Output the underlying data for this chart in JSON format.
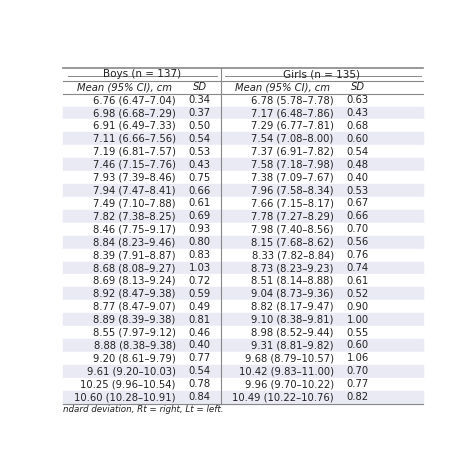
{
  "title_boys": "Boys (n = 137)",
  "title_girls": "Girls (n = 135)",
  "col_headers": [
    "Mean (95% CI), cm",
    "SD",
    "Mean (95% CI), cm",
    "SD"
  ],
  "boys_data": [
    [
      "6.76 (6.47–7.04)",
      "0.34"
    ],
    [
      "6.98 (6.68–7.29)",
      "0.37"
    ],
    [
      "6.91 (6.49–7.33)",
      "0.50"
    ],
    [
      "7.11 (6.66–7.56)",
      "0.54"
    ],
    [
      "7.19 (6.81–7.57)",
      "0.53"
    ],
    [
      "7.46 (7.15–7.76)",
      "0.43"
    ],
    [
      "7.93 (7.39–8.46)",
      "0.75"
    ],
    [
      "7.94 (7.47–8.41)",
      "0.66"
    ],
    [
      "7.49 (7.10–7.88)",
      "0.61"
    ],
    [
      "7.82 (7.38–8.25)",
      "0.69"
    ],
    [
      "8.46 (7.75–9.17)",
      "0.93"
    ],
    [
      "8.84 (8.23–9.46)",
      "0.80"
    ],
    [
      "8.39 (7.91–8.87)",
      "0.83"
    ],
    [
      "8.68 (8.08–9.27)",
      "1.03"
    ],
    [
      "8.69 (8.13–9.24)",
      "0.72"
    ],
    [
      "8.92 (8.47–9.38)",
      "0.59"
    ],
    [
      "8.77 (8.47–9.07)",
      "0.49"
    ],
    [
      "8.89 (8.39–9.38)",
      "0.81"
    ],
    [
      "8.55 (7.97–9.12)",
      "0.46"
    ],
    [
      "8.88 (8.38–9.38)",
      "0.40"
    ],
    [
      "9.20 (8.61–9.79)",
      "0.77"
    ],
    [
      "9.61 (9.20–10.03)",
      "0.54"
    ],
    [
      "10.25 (9.96–10.54)",
      "0.78"
    ],
    [
      "10.60 (10.28–10.91)",
      "0.84"
    ]
  ],
  "girls_data": [
    [
      "6.78 (5.78–7.78)",
      "0.63"
    ],
    [
      "7.17 (6.48–7.86)",
      "0.43"
    ],
    [
      "7.29 (6.77–7.81)",
      "0.68"
    ],
    [
      "7.54 (7.08–8.00)",
      "0.60"
    ],
    [
      "7.37 (6.91–7.82)",
      "0.54"
    ],
    [
      "7.58 (7.18–7.98)",
      "0.48"
    ],
    [
      "7.38 (7.09–7.67)",
      "0.40"
    ],
    [
      "7.96 (7.58–8.34)",
      "0.53"
    ],
    [
      "7.66 (7.15–8.17)",
      "0.67"
    ],
    [
      "7.78 (7.27–8.29)",
      "0.66"
    ],
    [
      "7.98 (7.40–8.56)",
      "0.70"
    ],
    [
      "8.15 (7.68–8.62)",
      "0.56"
    ],
    [
      "8.33 (7.82–8.84)",
      "0.76"
    ],
    [
      "8.73 (8.23–9.23)",
      "0.74"
    ],
    [
      "8.51 (8.14–8.88)",
      "0.61"
    ],
    [
      "9.04 (8.73–9.36)",
      "0.52"
    ],
    [
      "8.82 (8.17–9.47)",
      "0.90"
    ],
    [
      "9.10 (8.38–9.81)",
      "1.00"
    ],
    [
      "8.98 (8.52–9.44)",
      "0.55"
    ],
    [
      "9.31 (8.81–9.82)",
      "0.60"
    ],
    [
      "9.68 (8.79–10.57)",
      "1.06"
    ],
    [
      "10.42 (9.83–11.00)",
      "0.70"
    ],
    [
      "9.96 (9.70–10.22)",
      "0.77"
    ],
    [
      "10.49 (10.22–10.76)",
      "0.82"
    ]
  ],
  "footnote": "ndard deviation, Rt = right, Lt = left.",
  "bg_color_light": "#eaeaf4",
  "bg_color_white": "#ffffff",
  "border_color": "#888888",
  "text_color": "#222222",
  "font_size": 7.2,
  "header_font_size": 7.5
}
